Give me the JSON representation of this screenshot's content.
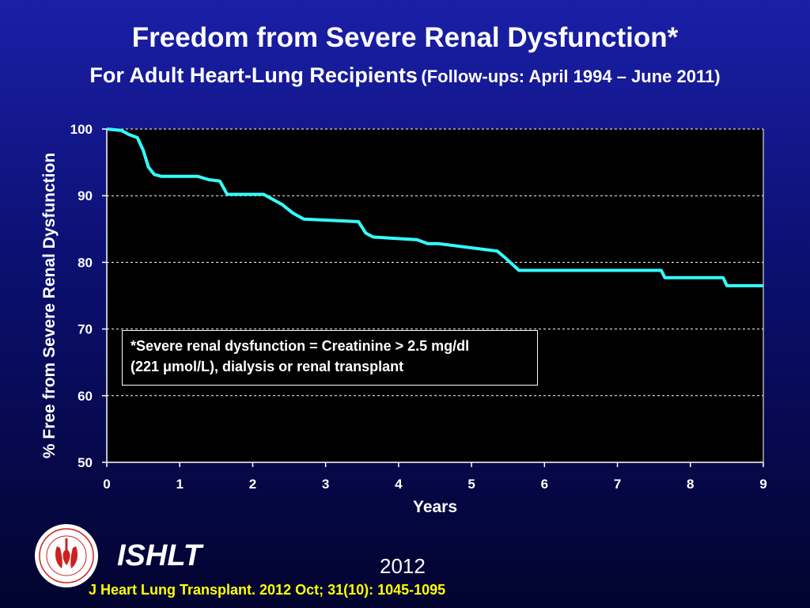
{
  "header": {
    "title": "Freedom from Severe Renal Dysfunction*",
    "subtitle_main": "For Adult Heart-Lung Recipients",
    "subtitle_detail": "(Follow-ups: April 1994 – June 2011)"
  },
  "footnote": {
    "line1": "*Severe renal dysfunction = Creatinine > 2.5 mg/dl",
    "line2": "(221 μmol/L), dialysis or renal transplant"
  },
  "footer": {
    "org": "ISHLT",
    "year": "2012",
    "citation": "J Heart Lung Transplant.  2012 Oct; 31(10): 1045-1095",
    "logo_icon": "ishlt-seal-icon"
  },
  "colors": {
    "curve": "#33ffff",
    "plot_background": "#000000",
    "citation": "#ffff00"
  },
  "chart_data": {
    "type": "line",
    "line_shape": "step",
    "xlabel": "Years",
    "ylabel": "% Free from Severe Renal Dysfunction",
    "xlim": [
      0,
      9
    ],
    "ylim": [
      50,
      100
    ],
    "xticks": [
      0,
      1,
      2,
      3,
      4,
      5,
      6,
      7,
      8,
      9
    ],
    "yticks": [
      50,
      60,
      70,
      80,
      90,
      100
    ],
    "grid": "horizontal dashed",
    "series": [
      {
        "x": [
          0,
          0.2,
          0.3,
          0.42,
          0.5,
          0.57,
          0.65,
          0.75,
          1.25,
          1.4,
          1.55,
          1.65,
          2.15,
          2.3,
          2.4,
          2.55,
          2.7,
          3.45,
          3.55,
          3.65,
          4.25,
          4.4,
          4.55,
          5.35,
          5.45,
          5.65,
          7.6,
          7.65,
          8.45,
          8.5,
          9.0
        ],
        "y": [
          100,
          99.8,
          99.2,
          98.7,
          96.8,
          94.3,
          93.2,
          92.9,
          92.9,
          92.4,
          92.2,
          90.2,
          90.2,
          89.3,
          88.7,
          87.4,
          86.5,
          86.1,
          84.4,
          83.8,
          83.4,
          82.8,
          82.8,
          81.7,
          80.8,
          78.8,
          78.8,
          77.7,
          77.7,
          76.5,
          76.5
        ]
      }
    ]
  }
}
